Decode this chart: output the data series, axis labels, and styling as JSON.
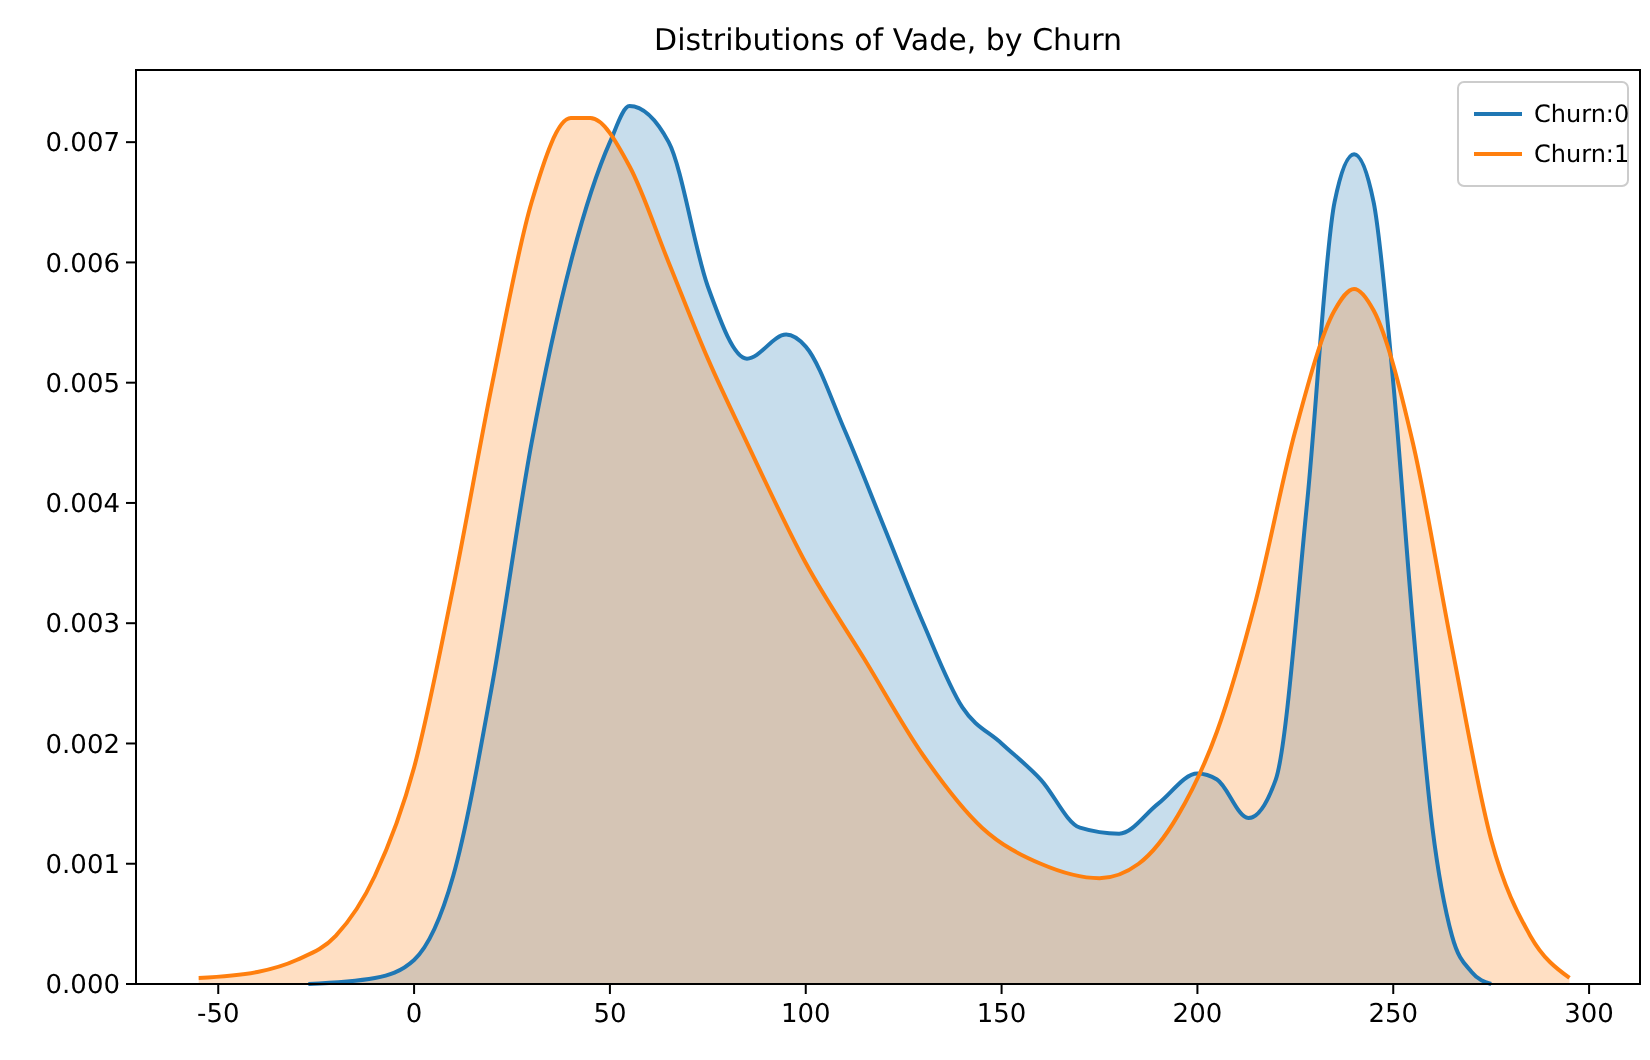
{
  "chart_data": {
    "type": "area",
    "title": "Distributions of Vade, by Churn",
    "xlim": [
      -71,
      313
    ],
    "ylim": [
      0,
      0.0076
    ],
    "xticks": [
      -50,
      0,
      50,
      100,
      150,
      200,
      250,
      300
    ],
    "yticks": [
      {
        "value": 0,
        "label": "0.000"
      },
      {
        "value": 0.001,
        "label": "0.001"
      },
      {
        "value": 0.002,
        "label": "0.002"
      },
      {
        "value": 0.003,
        "label": "0.003"
      },
      {
        "value": 0.004,
        "label": "0.004"
      },
      {
        "value": 0.005,
        "label": "0.005"
      },
      {
        "value": 0.006,
        "label": "0.006"
      },
      {
        "value": 0.007,
        "label": "0.007"
      }
    ],
    "grid": false,
    "legend": "top right",
    "series": [
      {
        "name": "Churn:0",
        "color": "#1f77b4",
        "x": [
          -27,
          -10,
          0,
          10,
          20,
          30,
          40,
          50,
          55,
          65,
          75,
          85,
          95,
          100,
          110,
          120,
          130,
          140,
          150,
          160,
          170,
          180,
          190,
          200,
          205,
          213,
          220,
          228,
          235,
          240,
          245,
          250,
          255,
          260,
          265,
          270,
          275
        ],
        "values": [
          0,
          5e-05,
          0.0002,
          0.0009,
          0.0025,
          0.0045,
          0.006,
          0.007,
          0.0073,
          0.007,
          0.0058,
          0.0052,
          0.0054,
          0.0053,
          0.0046,
          0.0038,
          0.003,
          0.0023,
          0.002,
          0.0017,
          0.0013,
          0.00125,
          0.0015,
          0.00175,
          0.0017,
          0.00138,
          0.0017,
          0.004,
          0.0065,
          0.0069,
          0.0065,
          0.005,
          0.003,
          0.0013,
          0.0004,
          0.0001,
          0
        ]
      },
      {
        "name": "Churn:1",
        "color": "#ff7f0e",
        "x": [
          -55,
          -40,
          -30,
          -20,
          -10,
          0,
          10,
          20,
          30,
          40,
          45,
          55,
          65,
          75,
          85,
          100,
          115,
          130,
          145,
          160,
          175,
          185,
          195,
          205,
          215,
          225,
          235,
          240,
          245,
          255,
          265,
          275,
          285,
          295
        ],
        "values": [
          5e-05,
          0.0001,
          0.0002,
          0.0004,
          0.0009,
          0.0018,
          0.0033,
          0.005,
          0.0065,
          0.0072,
          0.0072,
          0.0068,
          0.006,
          0.0052,
          0.0045,
          0.0035,
          0.0027,
          0.0019,
          0.0013,
          0.001,
          0.00088,
          0.001,
          0.0014,
          0.0021,
          0.0032,
          0.0046,
          0.0056,
          0.00578,
          0.0056,
          0.0045,
          0.0028,
          0.0012,
          0.0004,
          5e-05
        ]
      }
    ]
  }
}
